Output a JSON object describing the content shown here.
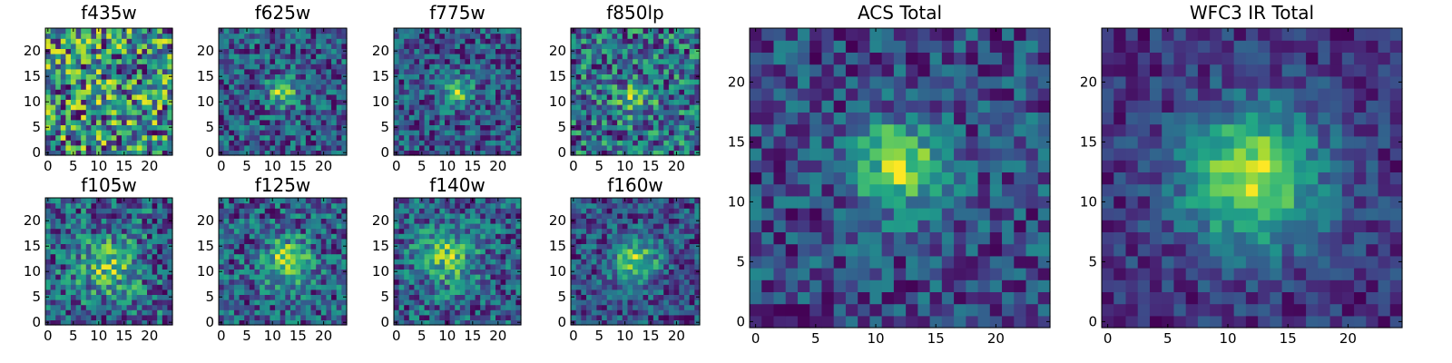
{
  "chart_data": [
    {
      "type": "heatmap",
      "title": "f435w",
      "grid": false,
      "colormap": "viridis",
      "size": 25,
      "xlim": [
        0,
        24
      ],
      "ylim": [
        0,
        24
      ],
      "xticks": [
        "0",
        "5",
        "10",
        "15",
        "20"
      ],
      "yticks": [
        "0",
        "5",
        "10",
        "15",
        "20"
      ],
      "noise": 0.85,
      "blob": {
        "x": 12,
        "y": 12,
        "sigma": 3.0,
        "amp": 0.05
      },
      "seed": 11
    },
    {
      "type": "heatmap",
      "title": "f625w",
      "grid": false,
      "colormap": "viridis",
      "size": 25,
      "xlim": [
        0,
        24
      ],
      "ylim": [
        0,
        24
      ],
      "xticks": [
        "0",
        "5",
        "10",
        "15",
        "20"
      ],
      "yticks": [
        "0",
        "5",
        "10",
        "15",
        "20"
      ],
      "noise": 0.55,
      "blob": {
        "x": 12,
        "y": 12,
        "sigma": 2.0,
        "amp": 0.5
      },
      "seed": 23
    },
    {
      "type": "heatmap",
      "title": "f775w",
      "grid": false,
      "colormap": "viridis",
      "size": 25,
      "xlim": [
        0,
        24
      ],
      "ylim": [
        0,
        24
      ],
      "xticks": [
        "0",
        "5",
        "10",
        "15",
        "20"
      ],
      "yticks": [
        "0",
        "5",
        "10",
        "15",
        "20"
      ],
      "noise": 0.55,
      "blob": {
        "x": 12,
        "y": 12,
        "sigma": 2.0,
        "amp": 0.5
      },
      "seed": 37
    },
    {
      "type": "heatmap",
      "title": "f850lp",
      "grid": false,
      "colormap": "viridis",
      "size": 25,
      "xlim": [
        0,
        24
      ],
      "ylim": [
        0,
        24
      ],
      "xticks": [
        "0",
        "5",
        "10",
        "15",
        "20"
      ],
      "yticks": [
        "0",
        "5",
        "10",
        "15",
        "20"
      ],
      "noise": 0.7,
      "blob": {
        "x": 12,
        "y": 11,
        "sigma": 2.4,
        "amp": 0.3
      },
      "seed": 41
    },
    {
      "type": "heatmap",
      "title": "f105w",
      "grid": false,
      "colormap": "viridis",
      "size": 25,
      "xlim": [
        0,
        24
      ],
      "ylim": [
        0,
        24
      ],
      "xticks": [
        "0",
        "5",
        "10",
        "15",
        "20"
      ],
      "yticks": [
        "0",
        "5",
        "10",
        "15",
        "20"
      ],
      "noise": 0.65,
      "blob": {
        "x": 12,
        "y": 11,
        "sigma": 4.0,
        "amp": 0.4
      },
      "seed": 53
    },
    {
      "type": "heatmap",
      "title": "f125w",
      "grid": false,
      "colormap": "viridis",
      "size": 25,
      "xlim": [
        0,
        24
      ],
      "ylim": [
        0,
        24
      ],
      "xticks": [
        "0",
        "5",
        "10",
        "15",
        "20"
      ],
      "yticks": [
        "0",
        "5",
        "10",
        "15",
        "20"
      ],
      "noise": 0.55,
      "blob": {
        "x": 13,
        "y": 12,
        "sigma": 3.0,
        "amp": 0.5
      },
      "seed": 61
    },
    {
      "type": "heatmap",
      "title": "f140w",
      "grid": false,
      "colormap": "viridis",
      "size": 25,
      "xlim": [
        0,
        24
      ],
      "ylim": [
        0,
        24
      ],
      "xticks": [
        "0",
        "5",
        "10",
        "15",
        "20"
      ],
      "yticks": [
        "0",
        "5",
        "10",
        "15",
        "20"
      ],
      "noise": 0.6,
      "blob": {
        "x": 10,
        "y": 13,
        "sigma": 4.0,
        "amp": 0.45
      },
      "seed": 71
    },
    {
      "type": "heatmap",
      "title": "f160w",
      "grid": false,
      "colormap": "viridis",
      "size": 25,
      "xlim": [
        0,
        24
      ],
      "ylim": [
        0,
        24
      ],
      "xticks": [
        "0",
        "5",
        "10",
        "15",
        "20"
      ],
      "yticks": [
        "0",
        "5",
        "10",
        "15",
        "20"
      ],
      "noise": 0.5,
      "blob": {
        "x": 12,
        "y": 12,
        "sigma": 3.0,
        "amp": 0.55
      },
      "seed": 83
    },
    {
      "type": "heatmap",
      "title": "ACS Total",
      "grid": false,
      "colormap": "viridis",
      "size": 25,
      "xlim": [
        0,
        24
      ],
      "ylim": [
        0,
        24
      ],
      "xticks": [
        "0",
        "5",
        "10",
        "15",
        "20"
      ],
      "yticks": [
        "0",
        "5",
        "10",
        "15",
        "20"
      ],
      "noise": 0.45,
      "blob": {
        "x": 12,
        "y": 13,
        "sigma": 2.6,
        "amp": 0.6
      },
      "seed": 97
    },
    {
      "type": "heatmap",
      "title": "WFC3 IR Total",
      "grid": false,
      "colormap": "viridis",
      "size": 25,
      "xlim": [
        0,
        24
      ],
      "ylim": [
        0,
        24
      ],
      "xticks": [
        "0",
        "5",
        "10",
        "15",
        "20"
      ],
      "yticks": [
        "0",
        "5",
        "10",
        "15",
        "20"
      ],
      "noise": 0.3,
      "blob": {
        "x": 12,
        "y": 12,
        "sigma": 4.0,
        "amp": 0.7
      },
      "seed": 109
    }
  ]
}
